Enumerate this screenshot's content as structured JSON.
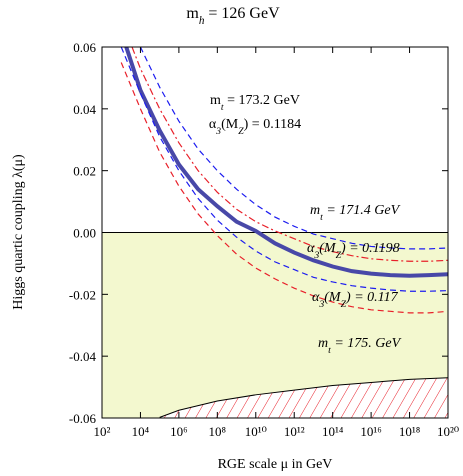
{
  "chart_data": {
    "type": "line",
    "title": "m_h = 126 GeV",
    "x_label": "RGE scale μ in GeV",
    "y_label": "Higgs quartic coupling λ(μ)",
    "x_log": true,
    "xlim": [
      100,
      1e+20
    ],
    "ylim": [
      -0.06,
      0.06
    ],
    "xticks": [
      {
        "value": 100,
        "label": "10²"
      },
      {
        "value": 10000.0,
        "label": "10⁴"
      },
      {
        "value": 1000000.0,
        "label": "10⁶"
      },
      {
        "value": 100000000.0,
        "label": "10⁸"
      },
      {
        "value": 10000000000.0,
        "label": "10¹⁰"
      },
      {
        "value": 1000000000000.0,
        "label": "10¹²"
      },
      {
        "value": 100000000000000.0,
        "label": "10¹⁴"
      },
      {
        "value": 1e+16,
        "label": "10¹⁶"
      },
      {
        "value": 1e+18,
        "label": "10¹⁸"
      },
      {
        "value": 1e+20,
        "label": "10²⁰"
      }
    ],
    "yticks": [
      0.06,
      0.04,
      0.02,
      {
        "value": 0,
        "label": "0.00"
      },
      -0.02,
      -0.04,
      -0.06
    ],
    "annotations": [
      "m_t = 173.2 GeV",
      "α_3(M_Z) = 0.1184"
    ],
    "x": [
      1000.0,
      10000.0,
      100000.0,
      1000000.0,
      10000000.0,
      100000000.0,
      1000000000.0,
      10000000000.0,
      100000000000.0,
      1000000000000.0,
      10000000000000.0,
      100000000000000.0,
      1000000000000000.0,
      1e+16,
      1e+17,
      1e+18,
      1e+19,
      1e+20
    ],
    "series": [
      {
        "name": null,
        "color": "#4848a8",
        "style": "solid",
        "width": 4,
        "values": [
          0.065,
          0.046,
          0.033,
          0.022,
          0.014,
          0.0085,
          0.0035,
          0.0005,
          -0.0035,
          -0.0065,
          -0.009,
          -0.011,
          -0.0125,
          -0.0133,
          -0.0138,
          -0.014,
          -0.0138,
          -0.0135
        ]
      },
      {
        "name": "m_t = 171.4 GeV",
        "color": "#1c1cf0",
        "style": "dashed",
        "width": 1.2,
        "values": [
          0.075,
          0.06,
          0.047,
          0.036,
          0.027,
          0.02,
          0.014,
          0.009,
          0.005,
          0.002,
          -0.0005,
          -0.002,
          -0.0035,
          -0.0045,
          -0.005,
          -0.0053,
          -0.0053,
          -0.005
        ]
      },
      {
        "name": "α_3(M_Z) = 0.1198",
        "color": "#e8202a",
        "style": "dashdot",
        "width": 1.2,
        "values": [
          0.069,
          0.053,
          0.04,
          0.029,
          0.02,
          0.013,
          0.0075,
          0.0035,
          0.0005,
          -0.002,
          -0.0045,
          -0.0062,
          -0.0075,
          -0.0085,
          -0.009,
          -0.0093,
          -0.0093,
          -0.009
        ]
      },
      {
        "name": "α_3(M_Z) = 0.117",
        "color": "#1c1cf0",
        "style": "dashed",
        "width": 1.2,
        "values": [
          0.06,
          0.045,
          0.031,
          0.02,
          0.011,
          0.004,
          -0.0015,
          -0.006,
          -0.0095,
          -0.012,
          -0.0145,
          -0.016,
          -0.0172,
          -0.018,
          -0.0186,
          -0.019,
          -0.019,
          -0.0188
        ]
      },
      {
        "name": "m_t = 175. GeV",
        "color": "#e8202a",
        "style": "dashed",
        "width": 1.2,
        "values": [
          0.055,
          0.04,
          0.026,
          0.015,
          0.006,
          -0.001,
          -0.007,
          -0.0115,
          -0.015,
          -0.018,
          -0.0205,
          -0.0225,
          -0.024,
          -0.025,
          -0.0255,
          -0.026,
          -0.026,
          -0.0255
        ]
      }
    ],
    "instability_boundary": {
      "color": "#000000",
      "hatch_color": "#e8202a",
      "stable_fill": "#f3f8cf",
      "x": [
        100000.0,
        1000000.0,
        100000000.0,
        10000000000.0,
        1000000000000.0,
        100000000000000.0,
        1e+16,
        1e+18,
        1e+20
      ],
      "values": [
        -0.0598,
        -0.0575,
        -0.0545,
        -0.0525,
        -0.051,
        -0.0495,
        -0.0485,
        -0.0475,
        -0.047
      ]
    }
  }
}
